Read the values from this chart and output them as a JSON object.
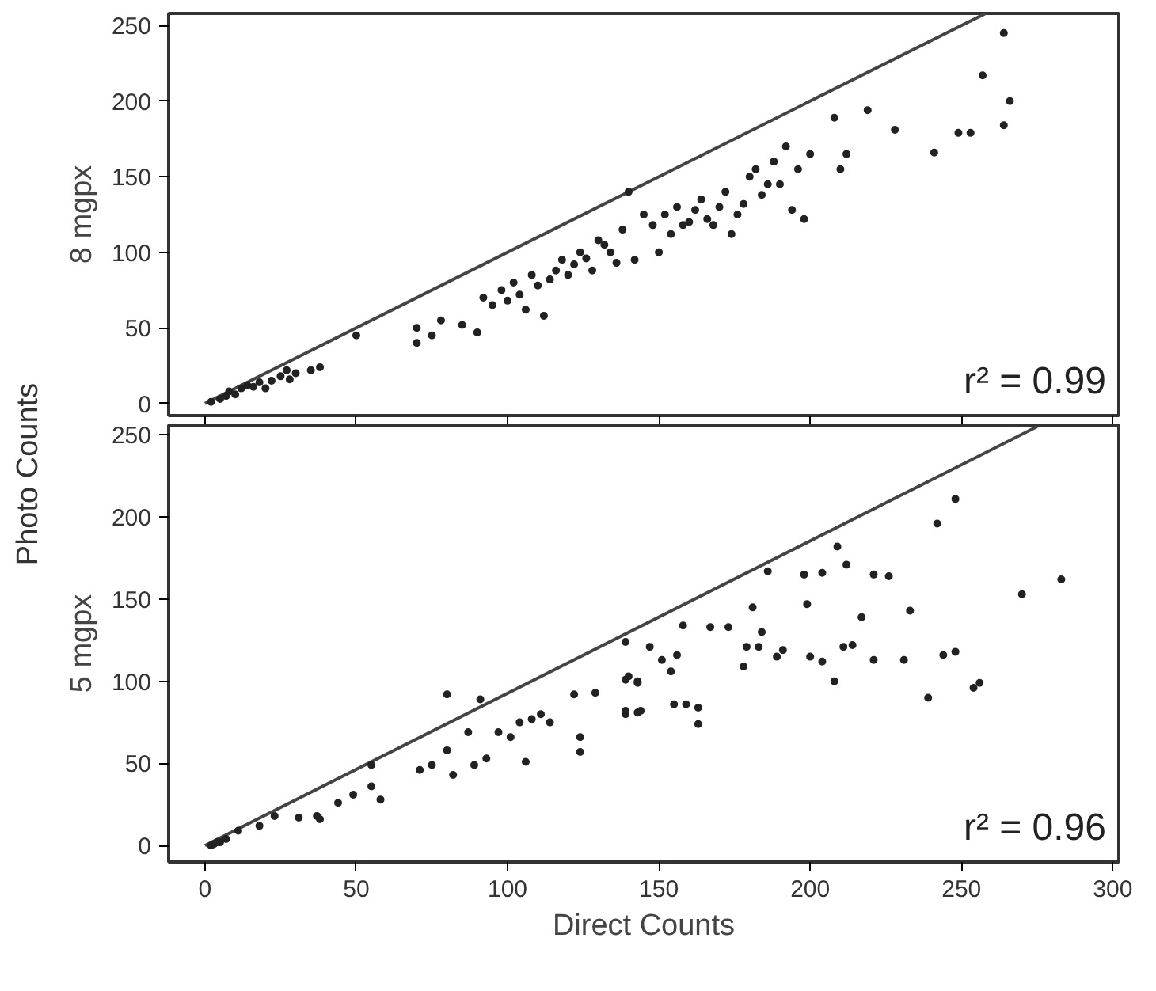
{
  "chart_data": [
    {
      "type": "scatter",
      "ylabel": "8 mgpx",
      "xlim": [
        -12,
        302
      ],
      "ylim": [
        -8,
        258
      ],
      "xticks": [
        0,
        50,
        100,
        150,
        200,
        250,
        300
      ],
      "yticks": [
        0,
        50,
        100,
        150,
        200,
        250
      ],
      "tick_labels": "y",
      "grid": false,
      "marker": "circle",
      "annotations": [
        "Photo Counts",
        "r² = 0.99"
      ],
      "series": [
        {
          "type": "line",
          "marker": "none",
          "color": "#444444",
          "x": [
            0,
            258
          ],
          "values": [
            0,
            258
          ]
        },
        {
          "color": "#222222",
          "x": [
            2,
            5,
            7,
            8,
            10,
            12,
            14,
            16,
            18,
            20,
            22,
            25,
            27,
            28,
            30,
            35,
            38,
            50,
            70,
            70,
            75,
            78,
            85,
            90,
            92,
            95,
            98,
            100,
            102,
            104,
            106,
            108,
            110,
            112,
            114,
            116,
            118,
            120,
            122,
            124,
            126,
            128,
            130,
            132,
            134,
            136,
            138,
            140,
            142,
            145,
            148,
            150,
            152,
            154,
            156,
            158,
            160,
            162,
            164,
            166,
            168,
            170,
            172,
            174,
            176,
            178,
            180,
            182,
            184,
            186,
            188,
            190,
            192,
            194,
            196,
            198,
            200,
            208,
            210,
            212,
            219,
            228,
            241,
            249,
            253,
            257,
            264,
            266,
            264
          ],
          "values": [
            1,
            3,
            5,
            8,
            6,
            10,
            12,
            11,
            14,
            10,
            15,
            18,
            22,
            16,
            20,
            22,
            24,
            45,
            40,
            50,
            45,
            55,
            52,
            47,
            70,
            65,
            75,
            68,
            80,
            72,
            62,
            85,
            78,
            58,
            82,
            88,
            95,
            85,
            92,
            100,
            96,
            88,
            108,
            105,
            100,
            93,
            115,
            140,
            95,
            125,
            118,
            100,
            125,
            112,
            130,
            118,
            120,
            128,
            135,
            122,
            118,
            130,
            140,
            112,
            125,
            132,
            150,
            155,
            138,
            145,
            160,
            145,
            170,
            128,
            155,
            122,
            165,
            189,
            155,
            165,
            194,
            181,
            166,
            179,
            179,
            217,
            245,
            200,
            184
          ]
        }
      ]
    },
    {
      "type": "scatter",
      "ylabel": "5 mgpx",
      "xlabel": "Direct Counts",
      "xlim": [
        -12,
        302
      ],
      "ylim": [
        -10,
        256
      ],
      "xticks": [
        0,
        50,
        100,
        150,
        200,
        250,
        300
      ],
      "yticks": [
        0,
        50,
        100,
        150,
        200,
        250
      ],
      "grid": false,
      "marker": "circle",
      "annotations": [
        "r² = 0.96"
      ],
      "series": [
        {
          "type": "line",
          "marker": "none",
          "color": "#444444",
          "x": [
            0,
            275
          ],
          "values": [
            0,
            255
          ]
        },
        {
          "color": "#222222",
          "x": [
            2,
            3,
            4,
            5,
            7,
            11,
            18,
            23,
            31,
            37,
            38,
            44,
            49,
            55,
            58,
            55,
            71,
            75,
            80,
            80,
            82,
            87,
            89,
            91,
            93,
            97,
            101,
            104,
            106,
            108,
            111,
            114,
            122,
            124,
            124,
            129,
            139,
            139,
            139,
            143,
            143,
            139,
            144,
            140,
            143,
            147,
            151,
            154,
            156,
            155,
            159,
            158,
            163,
            163,
            167,
            173,
            178,
            179,
            181,
            183,
            184,
            189,
            191,
            186,
            198,
            199,
            200,
            204,
            204,
            208,
            209,
            211,
            212,
            214,
            217,
            221,
            221,
            226,
            231,
            233,
            239,
            242,
            244,
            248,
            248,
            254,
            256,
            270,
            283
          ],
          "values": [
            0,
            1,
            2,
            2,
            4,
            9,
            12,
            18,
            17,
            18,
            16,
            26,
            31,
            36,
            28,
            49,
            46,
            49,
            58,
            92,
            43,
            69,
            49,
            89,
            53,
            69,
            66,
            75,
            51,
            77,
            80,
            75,
            92,
            66,
            57,
            93,
            80,
            124,
            101,
            99,
            81,
            82,
            82,
            103,
            100,
            121,
            113,
            106,
            116,
            86,
            86,
            134,
            84,
            74,
            133,
            133,
            109,
            121,
            145,
            121,
            130,
            115,
            119,
            167,
            165,
            147,
            115,
            112,
            166,
            100,
            182,
            121,
            171,
            122,
            139,
            165,
            113,
            164,
            113,
            143,
            90,
            196,
            116,
            211,
            118,
            96,
            99,
            153,
            162
          ]
        }
      ]
    }
  ]
}
